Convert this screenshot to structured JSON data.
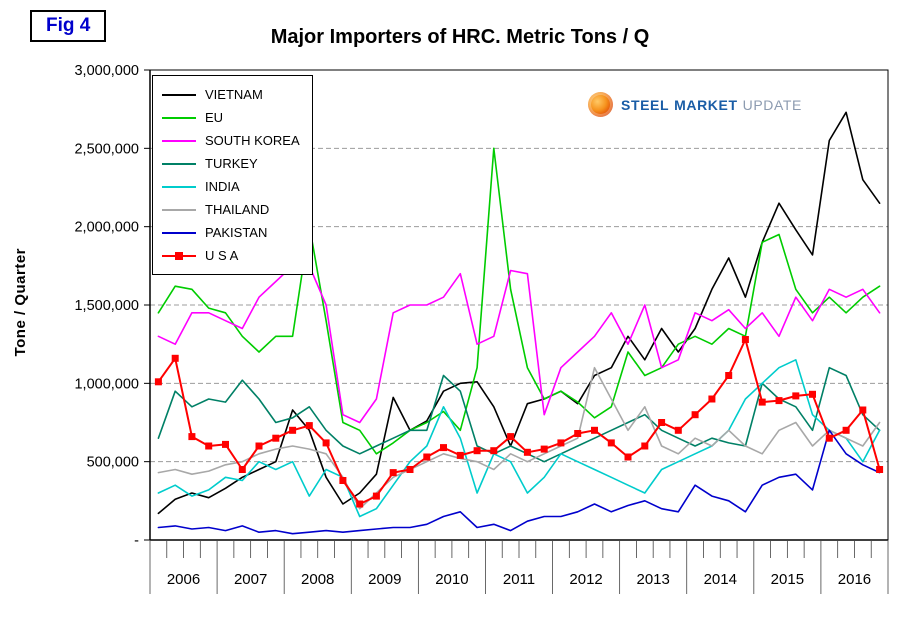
{
  "figure_label": "Fig 4",
  "logo": {
    "steel": "STEEL",
    "market": "MARKET",
    "update": "UPDATE"
  },
  "chart_data": {
    "type": "line",
    "title": "Major Importers of HRC. Metric Tons / Q",
    "xlabel": "",
    "ylabel": "Tone / Quarter",
    "ylim": [
      0,
      3000000
    ],
    "ytick_interval": 500000,
    "y_tick_labels": [
      "3,000,000",
      "2,500,000",
      "2,000,000",
      "1,500,000",
      "1,000,000",
      "500,000",
      "-"
    ],
    "grid": "horizontal-dashed",
    "legend_position": "top-left-inside",
    "x_years": [
      "2006",
      "2007",
      "2008",
      "2009",
      "2010",
      "2011",
      "2012",
      "2013",
      "2014",
      "2015",
      "2016"
    ],
    "quarters_per_year": 4,
    "series": [
      {
        "name": "VIETNAM",
        "color": "#000000",
        "values": [
          170000,
          260000,
          300000,
          270000,
          330000,
          400000,
          450000,
          500000,
          830000,
          700000,
          400000,
          230000,
          300000,
          420000,
          910000,
          700000,
          760000,
          950000,
          1000000,
          1010000,
          850000,
          600000,
          870000,
          900000,
          950000,
          870000,
          1050000,
          1100000,
          1300000,
          1150000,
          1350000,
          1200000,
          1350000,
          1600000,
          1800000,
          1550000,
          1900000,
          2150000,
          1980000,
          1820000,
          2550000,
          2730000,
          2300000,
          2150000
        ]
      },
      {
        "name": "EU",
        "color": "#00cc00",
        "values": [
          1450000,
          1620000,
          1600000,
          1480000,
          1450000,
          1300000,
          1200000,
          1300000,
          1300000,
          2010000,
          1400000,
          750000,
          700000,
          550000,
          620000,
          700000,
          750000,
          820000,
          700000,
          1100000,
          2500000,
          1600000,
          1100000,
          900000,
          950000,
          880000,
          780000,
          850000,
          1200000,
          1050000,
          1100000,
          1250000,
          1300000,
          1250000,
          1350000,
          1300000,
          1900000,
          1950000,
          1600000,
          1450000,
          1550000,
          1450000,
          1550000,
          1620000
        ]
      },
      {
        "name": "SOUTH KOREA",
        "color": "#ff00ff",
        "values": [
          1300000,
          1250000,
          1450000,
          1450000,
          1400000,
          1350000,
          1550000,
          1650000,
          1750000,
          1750000,
          1500000,
          800000,
          750000,
          900000,
          1450000,
          1500000,
          1500000,
          1550000,
          1700000,
          1250000,
          1300000,
          1720000,
          1700000,
          800000,
          1100000,
          1200000,
          1300000,
          1450000,
          1250000,
          1500000,
          1100000,
          1150000,
          1450000,
          1400000,
          1470000,
          1350000,
          1450000,
          1300000,
          1550000,
          1400000,
          1600000,
          1550000,
          1600000,
          1450000
        ]
      },
      {
        "name": "TURKEY",
        "color": "#008066",
        "values": [
          650000,
          950000,
          850000,
          900000,
          880000,
          1020000,
          900000,
          750000,
          780000,
          850000,
          700000,
          600000,
          550000,
          600000,
          650000,
          700000,
          700000,
          1050000,
          950000,
          600000,
          550000,
          600000,
          550000,
          500000,
          550000,
          600000,
          650000,
          700000,
          750000,
          800000,
          700000,
          650000,
          600000,
          650000,
          620000,
          600000,
          1000000,
          900000,
          850000,
          700000,
          1100000,
          1050000,
          800000,
          700000
        ]
      },
      {
        "name": "INDIA",
        "color": "#00cccc",
        "values": [
          300000,
          350000,
          280000,
          320000,
          400000,
          380000,
          500000,
          450000,
          500000,
          280000,
          450000,
          400000,
          150000,
          200000,
          350000,
          500000,
          600000,
          850000,
          650000,
          300000,
          550000,
          500000,
          300000,
          400000,
          550000,
          500000,
          450000,
          400000,
          350000,
          300000,
          450000,
          500000,
          550000,
          600000,
          700000,
          900000,
          1000000,
          1100000,
          1150000,
          800000,
          700000,
          650000,
          500000,
          700000
        ]
      },
      {
        "name": "THAILAND",
        "color": "#a8a8a8",
        "values": [
          430000,
          450000,
          420000,
          440000,
          480000,
          500000,
          550000,
          580000,
          600000,
          580000,
          550000,
          400000,
          200000,
          300000,
          400000,
          450000,
          500000,
          550000,
          520000,
          500000,
          450000,
          550000,
          500000,
          550000,
          600000,
          650000,
          1100000,
          900000,
          700000,
          850000,
          600000,
          550000,
          650000,
          600000,
          700000,
          600000,
          550000,
          700000,
          750000,
          600000,
          700000,
          650000,
          600000,
          750000
        ]
      },
      {
        "name": "PAKISTAN",
        "color": "#0000cc",
        "values": [
          80000,
          90000,
          70000,
          80000,
          60000,
          90000,
          50000,
          60000,
          40000,
          50000,
          60000,
          50000,
          60000,
          70000,
          80000,
          80000,
          100000,
          150000,
          180000,
          80000,
          100000,
          60000,
          120000,
          150000,
          150000,
          180000,
          230000,
          180000,
          220000,
          250000,
          200000,
          180000,
          350000,
          280000,
          250000,
          180000,
          350000,
          400000,
          420000,
          320000,
          700000,
          550000,
          480000,
          430000
        ]
      },
      {
        "name": "U S A",
        "color": "#ff0000",
        "marker": "square",
        "values": [
          1010000,
          1160000,
          660000,
          600000,
          610000,
          450000,
          600000,
          650000,
          700000,
          730000,
          620000,
          380000,
          230000,
          280000,
          430000,
          450000,
          530000,
          590000,
          540000,
          570000,
          570000,
          660000,
          560000,
          580000,
          620000,
          680000,
          700000,
          620000,
          530000,
          600000,
          750000,
          700000,
          800000,
          900000,
          1050000,
          1280000,
          880000,
          890000,
          920000,
          930000,
          650000,
          700000,
          830000,
          450000
        ]
      }
    ]
  }
}
